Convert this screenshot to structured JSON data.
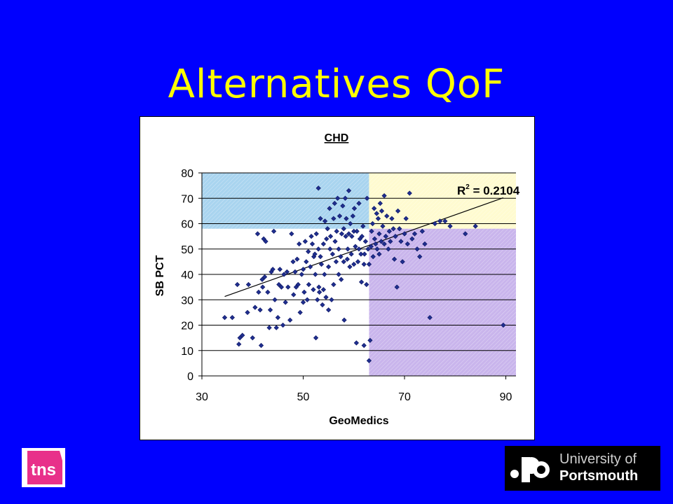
{
  "slide": {
    "title": "Alternatives QoF"
  },
  "logos": {
    "tns": "tns",
    "university_line1": "University of",
    "university_line2": "Portsmouth"
  },
  "colors": {
    "background": "#0000fe",
    "title": "#ffff00",
    "marker": "#1f2f8f",
    "zone_top_left": "#a9d4ef",
    "zone_top_right": "#fffbd0",
    "zone_bottom_right": "#c9b5ec"
  },
  "chart_data": {
    "type": "scatter",
    "title": "CHD",
    "xlabel": "GeoMedics",
    "ylabel": "SB PCT",
    "xlim": [
      30,
      92
    ],
    "ylim": [
      0,
      80
    ],
    "xticks": [
      30,
      50,
      70,
      90
    ],
    "yticks": [
      0,
      10,
      20,
      30,
      40,
      50,
      60,
      70,
      80
    ],
    "grid": "horizontal",
    "annotation": {
      "text_main": "R",
      "text_sup": "2",
      "text_rest": " = 0.2104"
    },
    "trendline": {
      "x": [
        34.5,
        89.5
      ],
      "y": [
        31.3,
        70.2
      ]
    },
    "zones": [
      {
        "name": "top-left",
        "x": [
          30,
          63
        ],
        "y": [
          58,
          80
        ]
      },
      {
        "name": "top-right",
        "x": [
          63,
          92
        ],
        "y": [
          58,
          80
        ]
      },
      {
        "name": "bottom-right",
        "x": [
          63,
          92
        ],
        "y": [
          0,
          58
        ]
      }
    ],
    "points": [
      [
        34.5,
        23
      ],
      [
        36,
        23
      ],
      [
        37,
        36
      ],
      [
        37.3,
        12.5
      ],
      [
        37.5,
        15
      ],
      [
        38,
        16
      ],
      [
        39,
        25
      ],
      [
        39.2,
        36
      ],
      [
        40,
        15
      ],
      [
        40.5,
        27
      ],
      [
        41,
        56
      ],
      [
        41.2,
        33
      ],
      [
        41.5,
        26
      ],
      [
        41.7,
        12
      ],
      [
        41.9,
        38
      ],
      [
        42,
        35
      ],
      [
        42.2,
        54
      ],
      [
        42.4,
        39
      ],
      [
        42.6,
        53
      ],
      [
        43,
        33
      ],
      [
        43.3,
        19
      ],
      [
        43.5,
        26
      ],
      [
        43.7,
        41
      ],
      [
        44,
        42
      ],
      [
        44.2,
        57
      ],
      [
        44.4,
        30
      ],
      [
        44.7,
        19
      ],
      [
        45,
        23
      ],
      [
        45.2,
        36
      ],
      [
        45.4,
        42
      ],
      [
        45.7,
        35
      ],
      [
        46,
        20
      ],
      [
        46.2,
        40
      ],
      [
        46.5,
        29
      ],
      [
        46.8,
        41
      ],
      [
        47,
        35
      ],
      [
        47.4,
        22
      ],
      [
        47.7,
        56
      ],
      [
        48,
        45
      ],
      [
        48.1,
        32
      ],
      [
        48.4,
        41
      ],
      [
        48.6,
        35
      ],
      [
        48.8,
        46
      ],
      [
        49,
        36
      ],
      [
        49.2,
        52
      ],
      [
        49.4,
        25
      ],
      [
        49.7,
        40
      ],
      [
        50,
        29
      ],
      [
        50,
        42
      ],
      [
        50.2,
        33
      ],
      [
        50.4,
        53
      ],
      [
        50.6,
        45
      ],
      [
        50.8,
        30
      ],
      [
        51,
        49
      ],
      [
        51.1,
        36
      ],
      [
        51.4,
        43
      ],
      [
        51.6,
        55
      ],
      [
        51.8,
        52
      ],
      [
        52,
        34
      ],
      [
        52.1,
        47
      ],
      [
        52.3,
        48
      ],
      [
        52.4,
        40
      ],
      [
        52.5,
        15
      ],
      [
        52.6,
        56
      ],
      [
        52.8,
        30
      ],
      [
        53,
        74
      ],
      [
        53,
        50
      ],
      [
        53.1,
        35
      ],
      [
        53.2,
        33
      ],
      [
        53.4,
        47
      ],
      [
        53.4,
        62
      ],
      [
        53.6,
        44
      ],
      [
        53.8,
        28
      ],
      [
        54,
        52
      ],
      [
        54,
        34
      ],
      [
        54.2,
        40
      ],
      [
        54.3,
        61
      ],
      [
        54.5,
        31
      ],
      [
        54.6,
        54
      ],
      [
        54.8,
        58
      ],
      [
        55,
        43
      ],
      [
        55,
        26
      ],
      [
        55.2,
        66
      ],
      [
        55.3,
        50
      ],
      [
        55.4,
        55
      ],
      [
        55.6,
        30
      ],
      [
        55.8,
        48
      ],
      [
        56,
        36
      ],
      [
        56,
        62
      ],
      [
        56.2,
        68
      ],
      [
        56.3,
        53
      ],
      [
        56.5,
        45
      ],
      [
        56.6,
        57
      ],
      [
        56.8,
        70
      ],
      [
        57,
        40
      ],
      [
        57,
        50
      ],
      [
        57.2,
        63
      ],
      [
        57.4,
        47
      ],
      [
        57.5,
        38
      ],
      [
        57.6,
        56
      ],
      [
        57.8,
        67
      ],
      [
        58,
        45
      ],
      [
        58,
        58
      ],
      [
        58.1,
        22
      ],
      [
        58.3,
        70
      ],
      [
        58.4,
        55
      ],
      [
        58.5,
        62
      ],
      [
        58.7,
        46
      ],
      [
        58.8,
        50
      ],
      [
        59,
        73
      ],
      [
        59,
        56
      ],
      [
        59.2,
        43
      ],
      [
        59.3,
        60
      ],
      [
        59.5,
        48
      ],
      [
        59.6,
        55
      ],
      [
        59.8,
        63
      ],
      [
        60,
        57
      ],
      [
        60,
        44
      ],
      [
        60.1,
        66
      ],
      [
        60.3,
        51
      ],
      [
        60.5,
        13
      ],
      [
        60.6,
        57
      ],
      [
        60.8,
        45
      ],
      [
        61,
        68
      ],
      [
        61,
        50
      ],
      [
        61.2,
        54
      ],
      [
        61.4,
        48
      ],
      [
        61.5,
        37
      ],
      [
        61.6,
        55
      ],
      [
        61.8,
        59
      ],
      [
        62,
        44
      ],
      [
        62,
        12
      ],
      [
        62.1,
        48
      ],
      [
        62.3,
        53
      ],
      [
        62.5,
        36
      ],
      [
        62.6,
        70
      ],
      [
        62.8,
        50
      ],
      [
        63,
        6
      ],
      [
        63,
        44
      ],
      [
        63.2,
        14
      ],
      [
        63.4,
        51
      ],
      [
        63.5,
        57
      ],
      [
        63.7,
        60
      ],
      [
        63.8,
        47
      ],
      [
        64,
        66
      ],
      [
        64.1,
        54
      ],
      [
        64.3,
        52
      ],
      [
        64.5,
        64
      ],
      [
        64.6,
        50
      ],
      [
        64.8,
        62
      ],
      [
        65,
        48
      ],
      [
        65,
        56
      ],
      [
        65.2,
        68
      ],
      [
        65.4,
        53
      ],
      [
        65.5,
        65
      ],
      [
        65.7,
        59
      ],
      [
        66,
        52
      ],
      [
        66,
        71
      ],
      [
        66.3,
        55
      ],
      [
        66.5,
        63
      ],
      [
        66.8,
        50
      ],
      [
        67,
        57
      ],
      [
        67.2,
        53
      ],
      [
        67.5,
        62
      ],
      [
        67.8,
        58
      ],
      [
        68,
        46
      ],
      [
        68.2,
        55
      ],
      [
        68.5,
        35
      ],
      [
        68.7,
        65
      ],
      [
        69,
        58
      ],
      [
        69.3,
        53
      ],
      [
        69.6,
        45
      ],
      [
        70,
        56
      ],
      [
        70.3,
        62
      ],
      [
        70.6,
        52
      ],
      [
        71,
        72
      ],
      [
        71.5,
        54
      ],
      [
        72,
        56
      ],
      [
        72.5,
        50
      ],
      [
        73,
        47
      ],
      [
        73.5,
        57
      ],
      [
        74,
        52
      ],
      [
        75,
        23
      ],
      [
        76,
        60
      ],
      [
        77,
        61
      ],
      [
        78,
        61
      ],
      [
        79,
        59
      ],
      [
        82,
        56
      ],
      [
        84,
        59
      ],
      [
        89.5,
        20
      ]
    ]
  }
}
